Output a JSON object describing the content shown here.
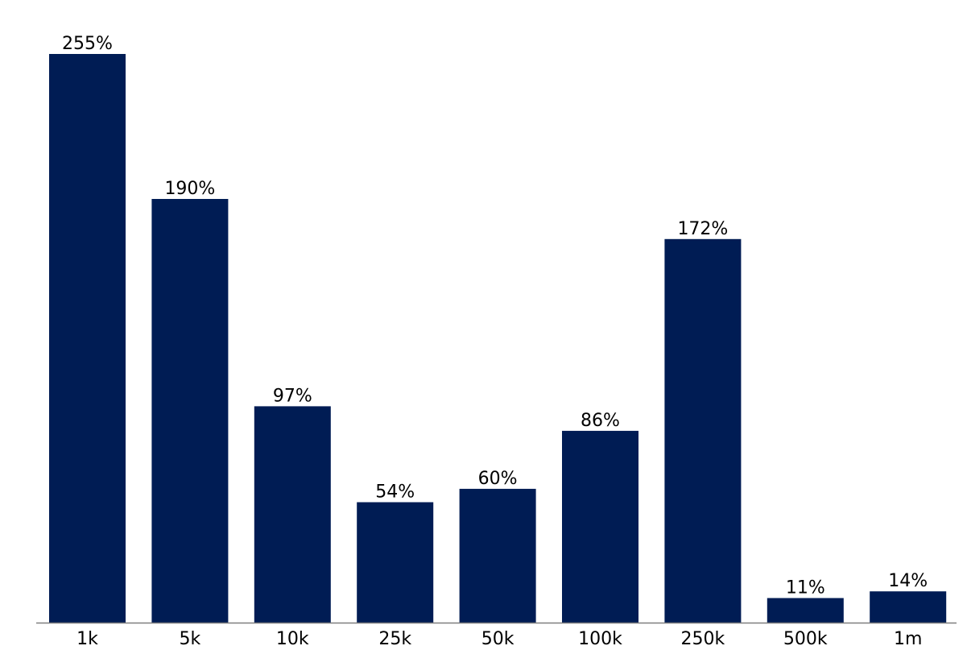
{
  "chart_data": {
    "type": "bar",
    "title": "",
    "xlabel": "",
    "ylabel": "",
    "categories": [
      "1k",
      "5k",
      "10k",
      "25k",
      "50k",
      "100k",
      "250k",
      "500k",
      "1m"
    ],
    "values": [
      255,
      190,
      97,
      54,
      60,
      86,
      172,
      11,
      14
    ],
    "value_labels": [
      "255%",
      "190%",
      "97%",
      "54%",
      "60%",
      "86%",
      "172%",
      "11%",
      "14%"
    ],
    "unit": "%",
    "ylim": [
      0,
      255
    ],
    "grid": false,
    "legend": "none",
    "bar_color": "#001C54",
    "axis_color": "#7F7F7F"
  }
}
